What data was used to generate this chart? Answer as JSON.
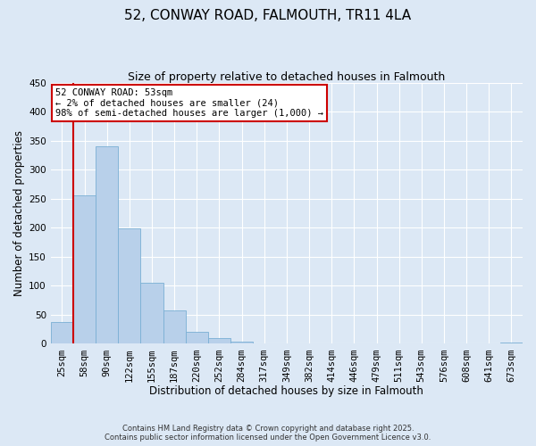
{
  "title": "52, CONWAY ROAD, FALMOUTH, TR11 4LA",
  "subtitle": "Size of property relative to detached houses in Falmouth",
  "xlabel": "Distribution of detached houses by size in Falmouth",
  "ylabel": "Number of detached properties",
  "categories": [
    "25sqm",
    "58sqm",
    "90sqm",
    "122sqm",
    "155sqm",
    "187sqm",
    "220sqm",
    "252sqm",
    "284sqm",
    "317sqm",
    "349sqm",
    "382sqm",
    "414sqm",
    "446sqm",
    "479sqm",
    "511sqm",
    "543sqm",
    "576sqm",
    "608sqm",
    "641sqm",
    "673sqm"
  ],
  "values": [
    37,
    256,
    341,
    199,
    105,
    57,
    21,
    10,
    4,
    0,
    0,
    0,
    0,
    0,
    0,
    0,
    0,
    0,
    0,
    0,
    2
  ],
  "bar_color": "#b8d0ea",
  "bar_edge_color": "#7aafd4",
  "marker_color": "#cc0000",
  "ylim": [
    0,
    450
  ],
  "yticks": [
    0,
    50,
    100,
    150,
    200,
    250,
    300,
    350,
    400,
    450
  ],
  "annotation_title": "52 CONWAY ROAD: 53sqm",
  "annotation_line1": "← 2% of detached houses are smaller (24)",
  "annotation_line2": "98% of semi-detached houses are larger (1,000) →",
  "annotation_box_color": "#ffffff",
  "annotation_border_color": "#cc0000",
  "footnote1": "Contains HM Land Registry data © Crown copyright and database right 2025.",
  "footnote2": "Contains public sector information licensed under the Open Government Licence v3.0.",
  "bg_color": "#dce8f5",
  "plot_bg_color": "#dce8f5",
  "title_fontsize": 11,
  "subtitle_fontsize": 9,
  "axis_label_fontsize": 8.5,
  "tick_fontsize": 7.5
}
